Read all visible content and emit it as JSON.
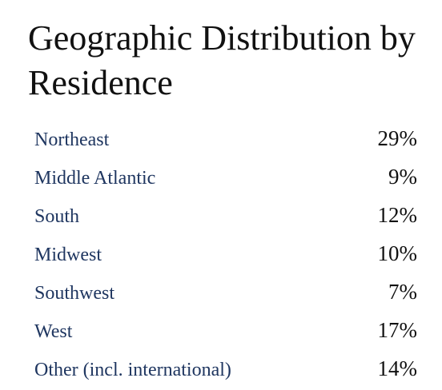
{
  "title": "Geographic Distribution by Residence",
  "table": {
    "rows": [
      {
        "label": "Northeast",
        "value": "29%"
      },
      {
        "label": "Middle Atlantic",
        "value": "9%"
      },
      {
        "label": "South",
        "value": "12%"
      },
      {
        "label": "Midwest",
        "value": "10%"
      },
      {
        "label": "Southwest",
        "value": "7%"
      },
      {
        "label": "West",
        "value": "17%"
      },
      {
        "label": "Other (incl. international)",
        "value": "14%"
      }
    ]
  },
  "colors": {
    "label": "#1f3660",
    "value": "#111111",
    "title": "#111111"
  }
}
